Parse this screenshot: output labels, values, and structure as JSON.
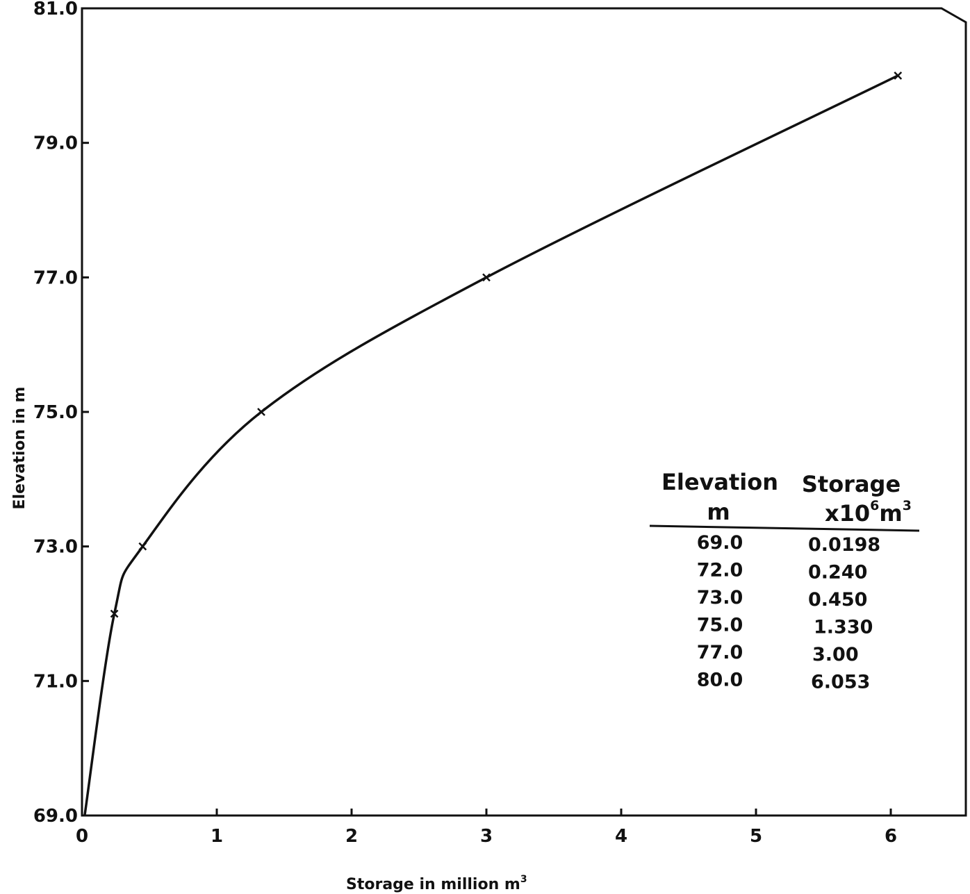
{
  "chart_data": {
    "type": "line",
    "title": "",
    "xlabel": "Storage in million m",
    "xlabel_sup": "3",
    "ylabel": "Elevation in m",
    "xlim": [
      0,
      6.3
    ],
    "ylim": [
      69.0,
      81.0
    ],
    "x_ticks": [
      0,
      1,
      2,
      3,
      4,
      5,
      6
    ],
    "x_tick_labels": [
      "0",
      "1",
      "2",
      "3",
      "4",
      "5",
      "6"
    ],
    "y_ticks": [
      69.0,
      71.0,
      73.0,
      75.0,
      77.0,
      79.0,
      81.0
    ],
    "y_tick_labels": [
      "69.0",
      "71.0",
      "73.0",
      "75.0",
      "77.0",
      "79.0",
      "81.0"
    ],
    "grid": false,
    "legend": "none",
    "series": [
      {
        "x": [
          0.0198,
          0.24,
          0.45,
          1.33,
          3.0,
          6.053
        ],
        "y": [
          69.0,
          72.0,
          73.0,
          75.0,
          77.0,
          80.0
        ]
      }
    ],
    "table": {
      "headers": [
        {
          "line1": "Elevation",
          "line2": "m"
        },
        {
          "line1": "Storage",
          "line2": "x10",
          "line2_sup": "6",
          "line2_unit": "m",
          "line2_unit_sup": "3"
        }
      ],
      "rows": [
        [
          "69.0",
          "0.0198"
        ],
        [
          "72.0",
          "0.240"
        ],
        [
          "73.0",
          "0.450"
        ],
        [
          "75.0",
          "1.330"
        ],
        [
          "77.0",
          "3.00"
        ],
        [
          "80.0",
          "6.053"
        ]
      ]
    }
  }
}
